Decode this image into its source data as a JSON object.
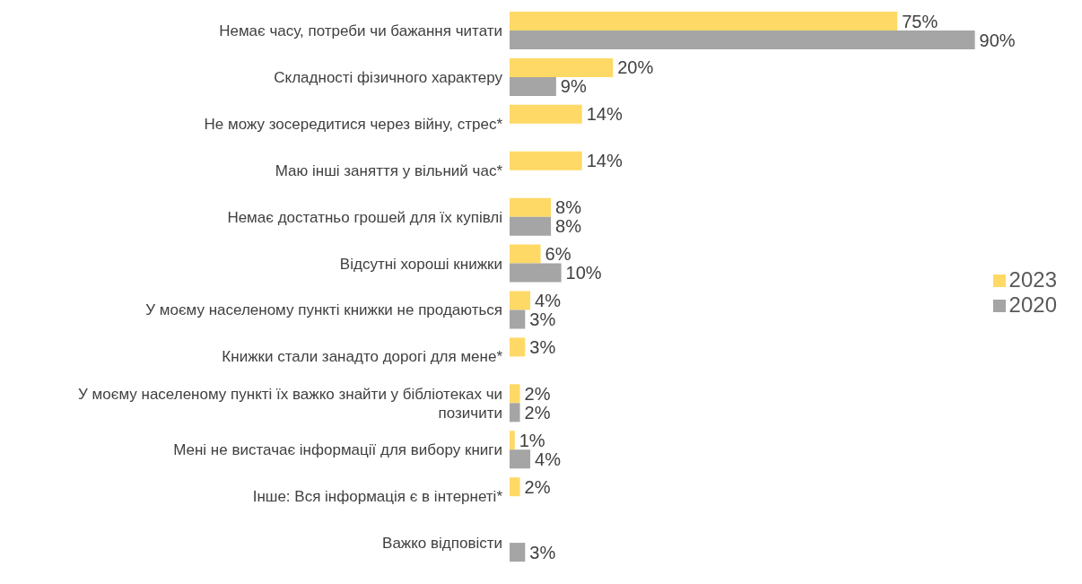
{
  "chart_data": {
    "type": "bar",
    "orientation": "horizontal",
    "legend": "right",
    "categories": [
      "Немає часу, потреби чи бажання читати",
      "Складності фізичного характеру",
      "Не можу зосередитися через війну, стрес*",
      "Маю інші заняття у вільний час*",
      "Немає достатньо грошей для їх купівлі",
      "Відсутні хороші книжки",
      "У моєму населеному пункті книжки не продаються",
      "Книжки стали занадто дорогі для мене*",
      "У моєму населеному пункті їх важко знайти у бібліотеках чи позичити",
      "Мені не вистачає інформації для вибору книги",
      "Інше: Вся інформація є в інтернеті*",
      "Важко відповісти"
    ],
    "series": [
      {
        "name": "2023",
        "color": "#ffd966",
        "values": [
          75,
          20,
          14,
          14,
          8,
          6,
          4,
          3,
          2,
          1,
          2,
          null
        ],
        "value_labels": [
          "75%",
          "20%",
          "14%",
          "14%",
          "8%",
          "6%",
          "4%",
          "3%",
          "2%",
          "1%",
          "2%",
          null
        ]
      },
      {
        "name": "2020",
        "color": "#a5a5a5",
        "values": [
          90,
          9,
          null,
          null,
          8,
          10,
          3,
          null,
          2,
          4,
          null,
          3
        ],
        "value_labels": [
          "90%",
          "9%",
          null,
          null,
          "8%",
          "10%",
          "3%",
          null,
          "2%",
          "4%",
          null,
          "3%"
        ]
      }
    ]
  }
}
